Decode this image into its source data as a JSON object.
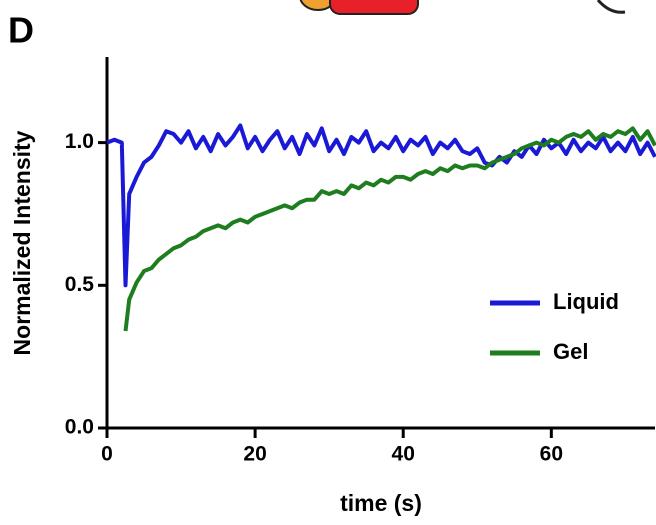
{
  "chart_data": {
    "type": "line",
    "panel_label": "D",
    "x_label": "time (s)",
    "y_label": "Normalized Intensity",
    "x": [
      0,
      1,
      2,
      2.5,
      3,
      4,
      5,
      6,
      7,
      8,
      9,
      10,
      11,
      12,
      13,
      14,
      15,
      16,
      17,
      18,
      19,
      20,
      21,
      22,
      23,
      24,
      25,
      26,
      27,
      28,
      29,
      30,
      31,
      32,
      33,
      34,
      35,
      36,
      37,
      38,
      39,
      40,
      41,
      42,
      43,
      44,
      45,
      46,
      47,
      48,
      49,
      50,
      51,
      52,
      53,
      54,
      55,
      56,
      57,
      58,
      59,
      60,
      61,
      62,
      63,
      64,
      65,
      66,
      67,
      68,
      69,
      70,
      71,
      72,
      73,
      74
    ],
    "series": [
      {
        "name": "Liquid",
        "color": "#1a1ad6",
        "values": [
          1.0,
          1.01,
          1.0,
          0.5,
          0.82,
          0.88,
          0.93,
          0.95,
          0.99,
          1.04,
          1.03,
          1.0,
          1.04,
          0.98,
          1.02,
          0.97,
          1.03,
          0.99,
          1.02,
          1.06,
          0.98,
          1.02,
          0.97,
          1.01,
          1.04,
          0.98,
          1.02,
          0.96,
          1.03,
          0.99,
          1.05,
          0.97,
          1.01,
          0.96,
          1.02,
          1.0,
          1.04,
          0.97,
          1.0,
          0.98,
          1.02,
          0.97,
          1.01,
          0.99,
          1.02,
          0.96,
          1.0,
          0.98,
          1.01,
          0.97,
          0.96,
          0.98,
          0.93,
          0.92,
          0.95,
          0.93,
          0.97,
          0.95,
          0.99,
          0.96,
          1.01,
          0.98,
          1.0,
          0.96,
          1.01,
          0.97,
          1.0,
          0.98,
          1.02,
          0.97,
          1.0,
          0.97,
          1.02,
          0.96,
          1.0,
          0.95
        ]
      },
      {
        "name": "Gel",
        "color": "#1e7d1e",
        "values": [
          null,
          null,
          null,
          0.34,
          0.45,
          0.51,
          0.55,
          0.56,
          0.59,
          0.61,
          0.63,
          0.64,
          0.66,
          0.67,
          0.69,
          0.7,
          0.71,
          0.7,
          0.72,
          0.73,
          0.72,
          0.74,
          0.75,
          0.76,
          0.77,
          0.78,
          0.77,
          0.79,
          0.8,
          0.8,
          0.83,
          0.82,
          0.83,
          0.82,
          0.85,
          0.84,
          0.86,
          0.85,
          0.87,
          0.86,
          0.88,
          0.88,
          0.87,
          0.89,
          0.9,
          0.89,
          0.91,
          0.9,
          0.92,
          0.91,
          0.92,
          0.92,
          0.91,
          0.93,
          0.94,
          0.95,
          0.96,
          0.98,
          0.99,
          1.0,
          0.99,
          1.01,
          1.0,
          1.02,
          1.03,
          1.02,
          1.04,
          1.01,
          1.03,
          1.02,
          1.04,
          1.03,
          1.05,
          1.01,
          1.04,
          0.99
        ]
      }
    ],
    "xlim": [
      0,
      74
    ],
    "xticks": [
      0,
      20,
      40,
      60
    ],
    "ylim": [
      0,
      1.3
    ],
    "yticks": [
      {
        "value": 0,
        "label": "0.0"
      },
      0.5,
      {
        "value": 1,
        "label": "1.0"
      }
    ],
    "legend": "right"
  }
}
